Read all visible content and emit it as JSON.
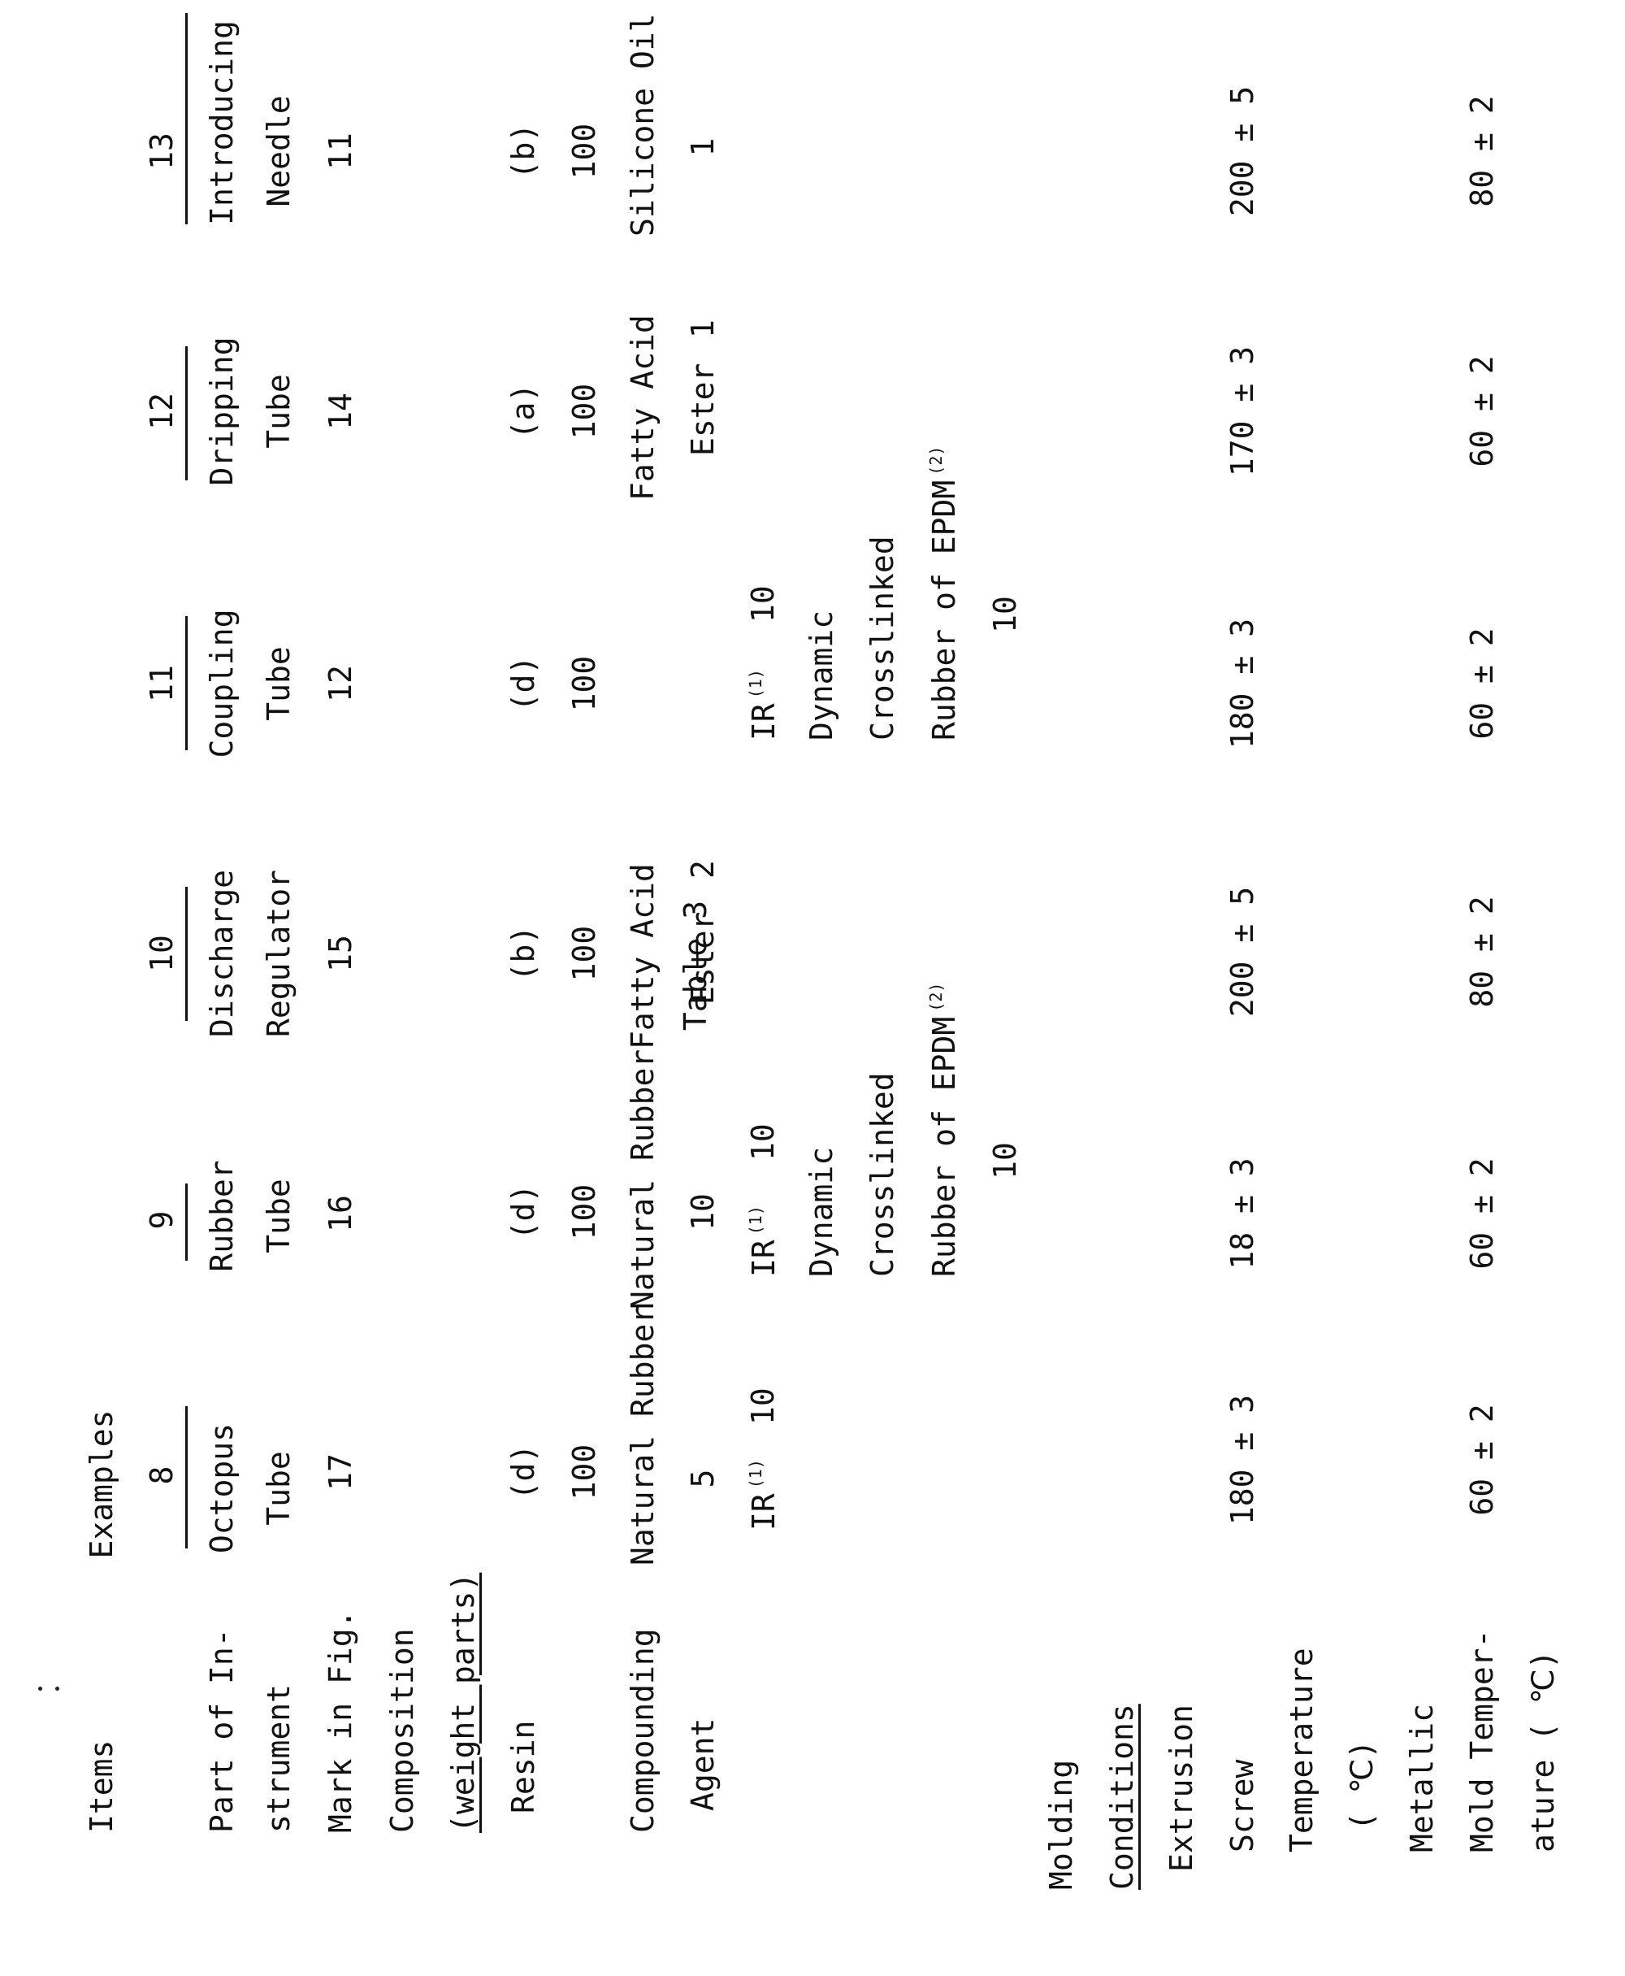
{
  "title": "Table 3",
  "items_label": "Items",
  "examples_label": "Examples",
  "rows": {
    "part_line1": "Part of In-",
    "part_line2": "strument",
    "mark": "Mark in Fig.",
    "composition": "Composition",
    "weight_parts": "(weight parts)",
    "resin": "Resin",
    "compounding_line1": "Compounding",
    "compounding_line2": "Agent",
    "molding": "Molding",
    "conditions": "Conditions",
    "extrusion": "Extrusion",
    "screw": "Screw",
    "temperature": "Temperature",
    "celsius_unit": "( ℃)",
    "metallic": "Metallic",
    "mold_temp_line1": "Mold Temper-",
    "mold_temp_line2": "ature ( ℃)"
  },
  "columns": [
    {
      "number": "8",
      "part": [
        "Octopus",
        "Tube"
      ],
      "mark": "17",
      "resin": "(d)",
      "resin_amount": "100",
      "agent1_name": "Natural Rubber",
      "agent1_amount": "5",
      "agent2_name": "IR",
      "agent2_sup": "(1)",
      "agent2_amount": "10",
      "screw_temp": "180 ± 3",
      "mold_temp": "60 ± 2"
    },
    {
      "number": "9",
      "part": [
        "Rubber",
        "Tube"
      ],
      "mark": "16",
      "resin": "(d)",
      "resin_amount": "100",
      "agent1_name": "Natural Rubber",
      "agent1_amount": "10",
      "agent2_name": "IR",
      "agent2_sup": "(1)",
      "agent2_amount": "10",
      "agent3_lines": [
        "Dynamic",
        "Crosslinked",
        "Rubber of EPDM"
      ],
      "agent3_sup": "(2)",
      "agent3_amount": "10",
      "screw_temp": "18 ± 3",
      "mold_temp": "60 ± 2"
    },
    {
      "number": "10",
      "part": [
        "Discharge",
        "Regulator"
      ],
      "mark": "15",
      "resin": "(b)",
      "resin_amount": "100",
      "agent1_lines": [
        "Fatty Acid",
        "Ester"
      ],
      "agent1_amount": "2",
      "screw_temp": "200 ± 5",
      "mold_temp": "80 ± 2"
    },
    {
      "number": "11",
      "part": [
        "Coupling",
        "Tube"
      ],
      "mark": "12",
      "resin": "(d)",
      "resin_amount": "100",
      "agent2_name": "IR",
      "agent2_sup": "(1)",
      "agent2_amount": "10",
      "agent3_lines": [
        "Dynamic",
        "Crosslinked",
        "Rubber of EPDM"
      ],
      "agent3_sup": "(2)",
      "agent3_amount": "10",
      "screw_temp": "180 ± 3",
      "mold_temp": "60 ± 2"
    },
    {
      "number": "12",
      "part": [
        "Dripping",
        "Tube"
      ],
      "mark": "14",
      "resin": "(a)",
      "resin_amount": "100",
      "agent1_lines": [
        "Fatty Acid",
        "Ester"
      ],
      "agent1_amount": "1",
      "screw_temp": "170 ± 3",
      "mold_temp": "60 ± 2"
    },
    {
      "number": "13",
      "part": [
        "Introducing",
        "Needle"
      ],
      "mark": "11",
      "resin": "(b)",
      "resin_amount": "100",
      "agent1_name": "Silicone Oil",
      "agent1_amount": "1",
      "screw_temp": "200 ± 5",
      "mold_temp": "80 ± 2"
    }
  ]
}
